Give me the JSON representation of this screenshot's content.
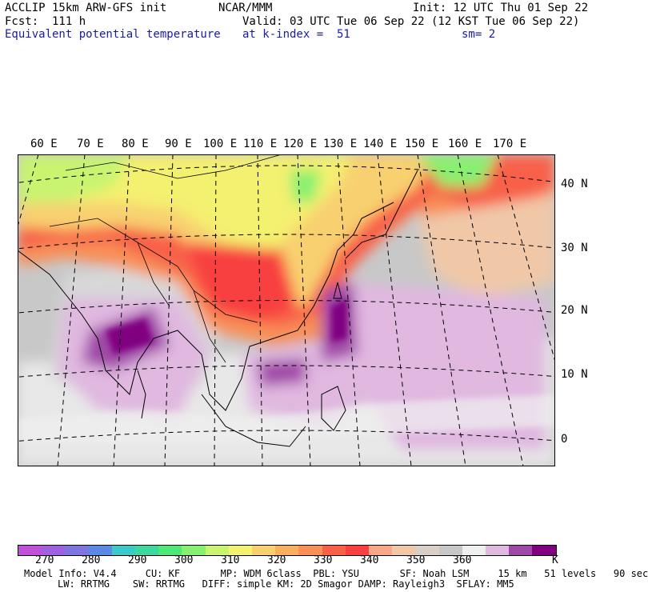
{
  "header": {
    "model": "ACCLIP 15km ARW-GFS init",
    "center": "NCAR/MMM",
    "init": "Init: 12 UTC Thu 01 Sep 22",
    "fcst": "Fcst:  111 h",
    "valid": "Valid: 03 UTC Tue 06 Sep 22 (12 KST Tue 06 Sep 22)",
    "field": "Equivalent potential temperature",
    "level": "at k-index =  51",
    "smooth": "sm= 2"
  },
  "map": {
    "lon_labels": [
      "60 E",
      "70 E",
      "80 E",
      "90 E",
      "100 E",
      "110 E",
      "120 E",
      "130 E",
      "140 E",
      "150 E",
      "160 E",
      "170 E"
    ],
    "lat_labels": [
      "40 N",
      "30 N",
      "20 N",
      "10 N",
      "0"
    ]
  },
  "colorbar": {
    "colors": [
      "#c050d8",
      "#a060e0",
      "#7f74e0",
      "#5a8ae6",
      "#3ccac8",
      "#3cd8a0",
      "#4ee878",
      "#88f070",
      "#c8f470",
      "#f4f070",
      "#f8d070",
      "#f8b060",
      "#f89058",
      "#f86048",
      "#f84040",
      "#f8a888",
      "#f0c8a8",
      "#d8d0c8",
      "#c8c8c8",
      "#f0f0f0",
      "#e0b8e0",
      "#a048a8",
      "#800080"
    ],
    "tick_labels": [
      "270",
      "280",
      "290",
      "300",
      "310",
      "320",
      "330",
      "340",
      "350",
      "360",
      "K"
    ]
  },
  "footer": {
    "line1": "Model Info: V4.4     CU: KF       MP: WDM 6class  PBL: YSU       SF: Noah LSM     15 km   51 levels   90 sec",
    "line2": "LW: RRTMG    SW: RRTMG   DIFF: simple KM: 2D Smagor DAMP: Rayleigh3  SFLAY: MM5"
  }
}
